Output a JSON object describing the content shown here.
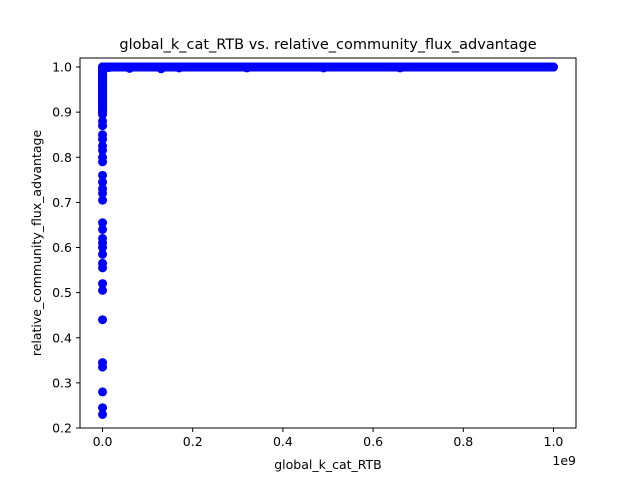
{
  "chart_data": {
    "type": "scatter",
    "title": "global_k_cat_RTB vs. relative_community_flux_advantage",
    "xlabel": "global_k_cat_RTB",
    "ylabel": "relative_community_flux_advantage",
    "x_offset_label": "1e9",
    "xlim": [
      -0.05,
      1.05
    ],
    "ylim": [
      0.2,
      1.02
    ],
    "x_ticks": [
      0.0,
      0.2,
      0.4,
      0.6,
      0.8,
      1.0
    ],
    "x_tick_labels": [
      "0.0",
      "0.2",
      "0.4",
      "0.6",
      "0.8",
      "1.0"
    ],
    "y_ticks": [
      0.2,
      0.3,
      0.4,
      0.5,
      0.6,
      0.7,
      0.8,
      0.9,
      1.0
    ],
    "y_tick_labels": [
      "0.2",
      "0.3",
      "0.4",
      "0.5",
      "0.6",
      "0.7",
      "0.8",
      "0.9",
      "1.0"
    ],
    "grid": false,
    "marker_color": "#0000ff",
    "series": [
      {
        "x": [
          0.0,
          0.0,
          0.0,
          0.0,
          0.0,
          0.0,
          0.0,
          0.0,
          0.0,
          0.0,
          0.0,
          0.0,
          0.0,
          0.0,
          0.0,
          0.0,
          0.0,
          0.0,
          0.0,
          0.0,
          0.0,
          0.0,
          0.0,
          0.0,
          0.0,
          0.0,
          0.0,
          0.0,
          0.0,
          0.0,
          0.0,
          0.0,
          0.0,
          0.0,
          0.0,
          0.0,
          0.0,
          0.0,
          0.0,
          0.0,
          0.0,
          0.0,
          0.0,
          0.0,
          0.0,
          0.0,
          0.0,
          0.0,
          0.0,
          0.0,
          0.0,
          0.0,
          0.0,
          0.0,
          0.0,
          0.0,
          0.0,
          0.0,
          0.0,
          0.0,
          0.0,
          0.0,
          0.0,
          0.0,
          0.0,
          0.02,
          0.04,
          0.06,
          0.08,
          0.1,
          0.12,
          0.14,
          0.16,
          0.18,
          0.2,
          0.22,
          0.24,
          0.26,
          0.28,
          0.3,
          0.32,
          0.34,
          0.36,
          0.38,
          0.4,
          0.42,
          0.44,
          0.46,
          0.48,
          0.5,
          0.52,
          0.54,
          0.56,
          0.58,
          0.6,
          0.62,
          0.64,
          0.66,
          0.68,
          0.7,
          0.72,
          0.74,
          0.76,
          0.78,
          0.8,
          0.82,
          0.84,
          0.86,
          0.88,
          0.9,
          0.92,
          0.94,
          0.96,
          0.98,
          1.0,
          0.06,
          0.13,
          0.17,
          0.32,
          0.49,
          0.66,
          0.005,
          0.01,
          0.015
        ],
        "y": [
          0.23,
          0.245,
          0.28,
          0.335,
          0.345,
          0.44,
          0.505,
          0.52,
          0.555,
          0.565,
          0.585,
          0.6,
          0.61,
          0.62,
          0.64,
          0.655,
          0.705,
          0.72,
          0.73,
          0.745,
          0.76,
          0.79,
          0.8,
          0.815,
          0.825,
          0.84,
          0.85,
          0.87,
          0.88,
          0.895,
          0.9,
          0.91,
          0.915,
          0.92,
          0.925,
          0.93,
          0.935,
          0.94,
          0.945,
          0.95,
          0.955,
          0.96,
          0.963,
          0.966,
          0.969,
          0.972,
          0.975,
          0.978,
          0.98,
          0.982,
          0.984,
          0.986,
          0.988,
          0.99,
          0.992,
          0.993,
          0.994,
          0.995,
          0.996,
          0.997,
          0.998,
          0.999,
          1.0,
          1.0,
          1.0,
          1.0,
          1.0,
          1.0,
          1.0,
          1.0,
          1.0,
          1.0,
          1.0,
          1.0,
          1.0,
          1.0,
          1.0,
          1.0,
          1.0,
          1.0,
          1.0,
          1.0,
          1.0,
          1.0,
          1.0,
          1.0,
          1.0,
          1.0,
          1.0,
          1.0,
          1.0,
          1.0,
          1.0,
          1.0,
          1.0,
          1.0,
          1.0,
          1.0,
          1.0,
          1.0,
          1.0,
          1.0,
          1.0,
          1.0,
          1.0,
          1.0,
          1.0,
          1.0,
          1.0,
          1.0,
          1.0,
          1.0,
          1.0,
          1.0,
          1.0,
          0.997,
          0.996,
          0.998,
          0.998,
          0.998,
          0.998,
          0.999,
          0.999,
          0.999
        ]
      }
    ]
  }
}
